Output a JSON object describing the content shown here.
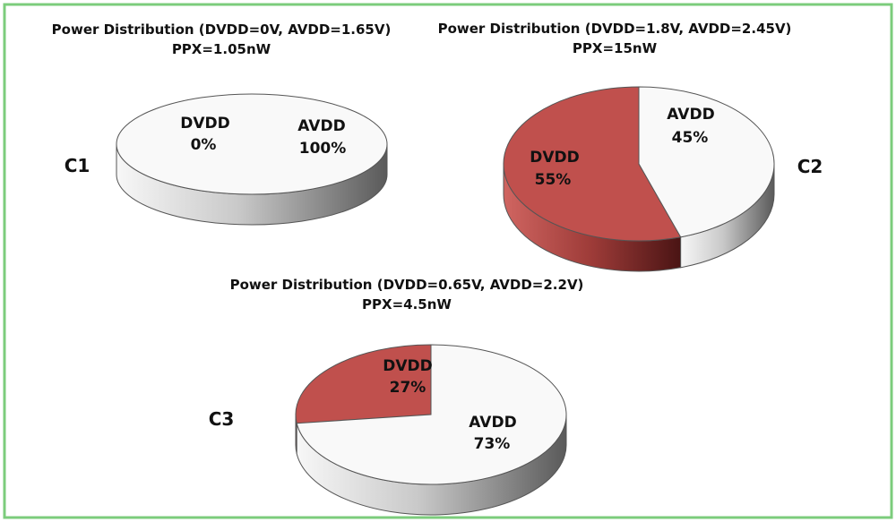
{
  "colors": {
    "border": "#7ccc7c",
    "dvdd": "#c0504d",
    "avdd": "#f9f9f9",
    "outline": "#555555"
  },
  "chart_data": [
    {
      "id": "C1",
      "type": "pie",
      "title": "Power Distribution (DVDD=0V, AVDD=1.65V)",
      "subtitle": "PPX=1.05nW",
      "categories": [
        "DVDD",
        "AVDD"
      ],
      "values": [
        0,
        100
      ],
      "value_labels": [
        "0%",
        "100%"
      ],
      "colors": [
        "#c0504d",
        "#f9f9f9"
      ]
    },
    {
      "id": "C2",
      "type": "pie",
      "title": "Power Distribution (DVDD=1.8V, AVDD=2.45V)",
      "subtitle": "PPX=15nW",
      "categories": [
        "DVDD",
        "AVDD"
      ],
      "values": [
        55,
        45
      ],
      "value_labels": [
        "55%",
        "45%"
      ],
      "colors": [
        "#c0504d",
        "#f9f9f9"
      ]
    },
    {
      "id": "C3",
      "type": "pie",
      "title": "Power Distribution (DVDD=0.65V, AVDD=2.2V)",
      "subtitle": "PPX=4.5nW",
      "categories": [
        "DVDD",
        "AVDD"
      ],
      "values": [
        27,
        73
      ],
      "value_labels": [
        "27%",
        "73%"
      ],
      "colors": [
        "#c0504d",
        "#f9f9f9"
      ]
    }
  ]
}
